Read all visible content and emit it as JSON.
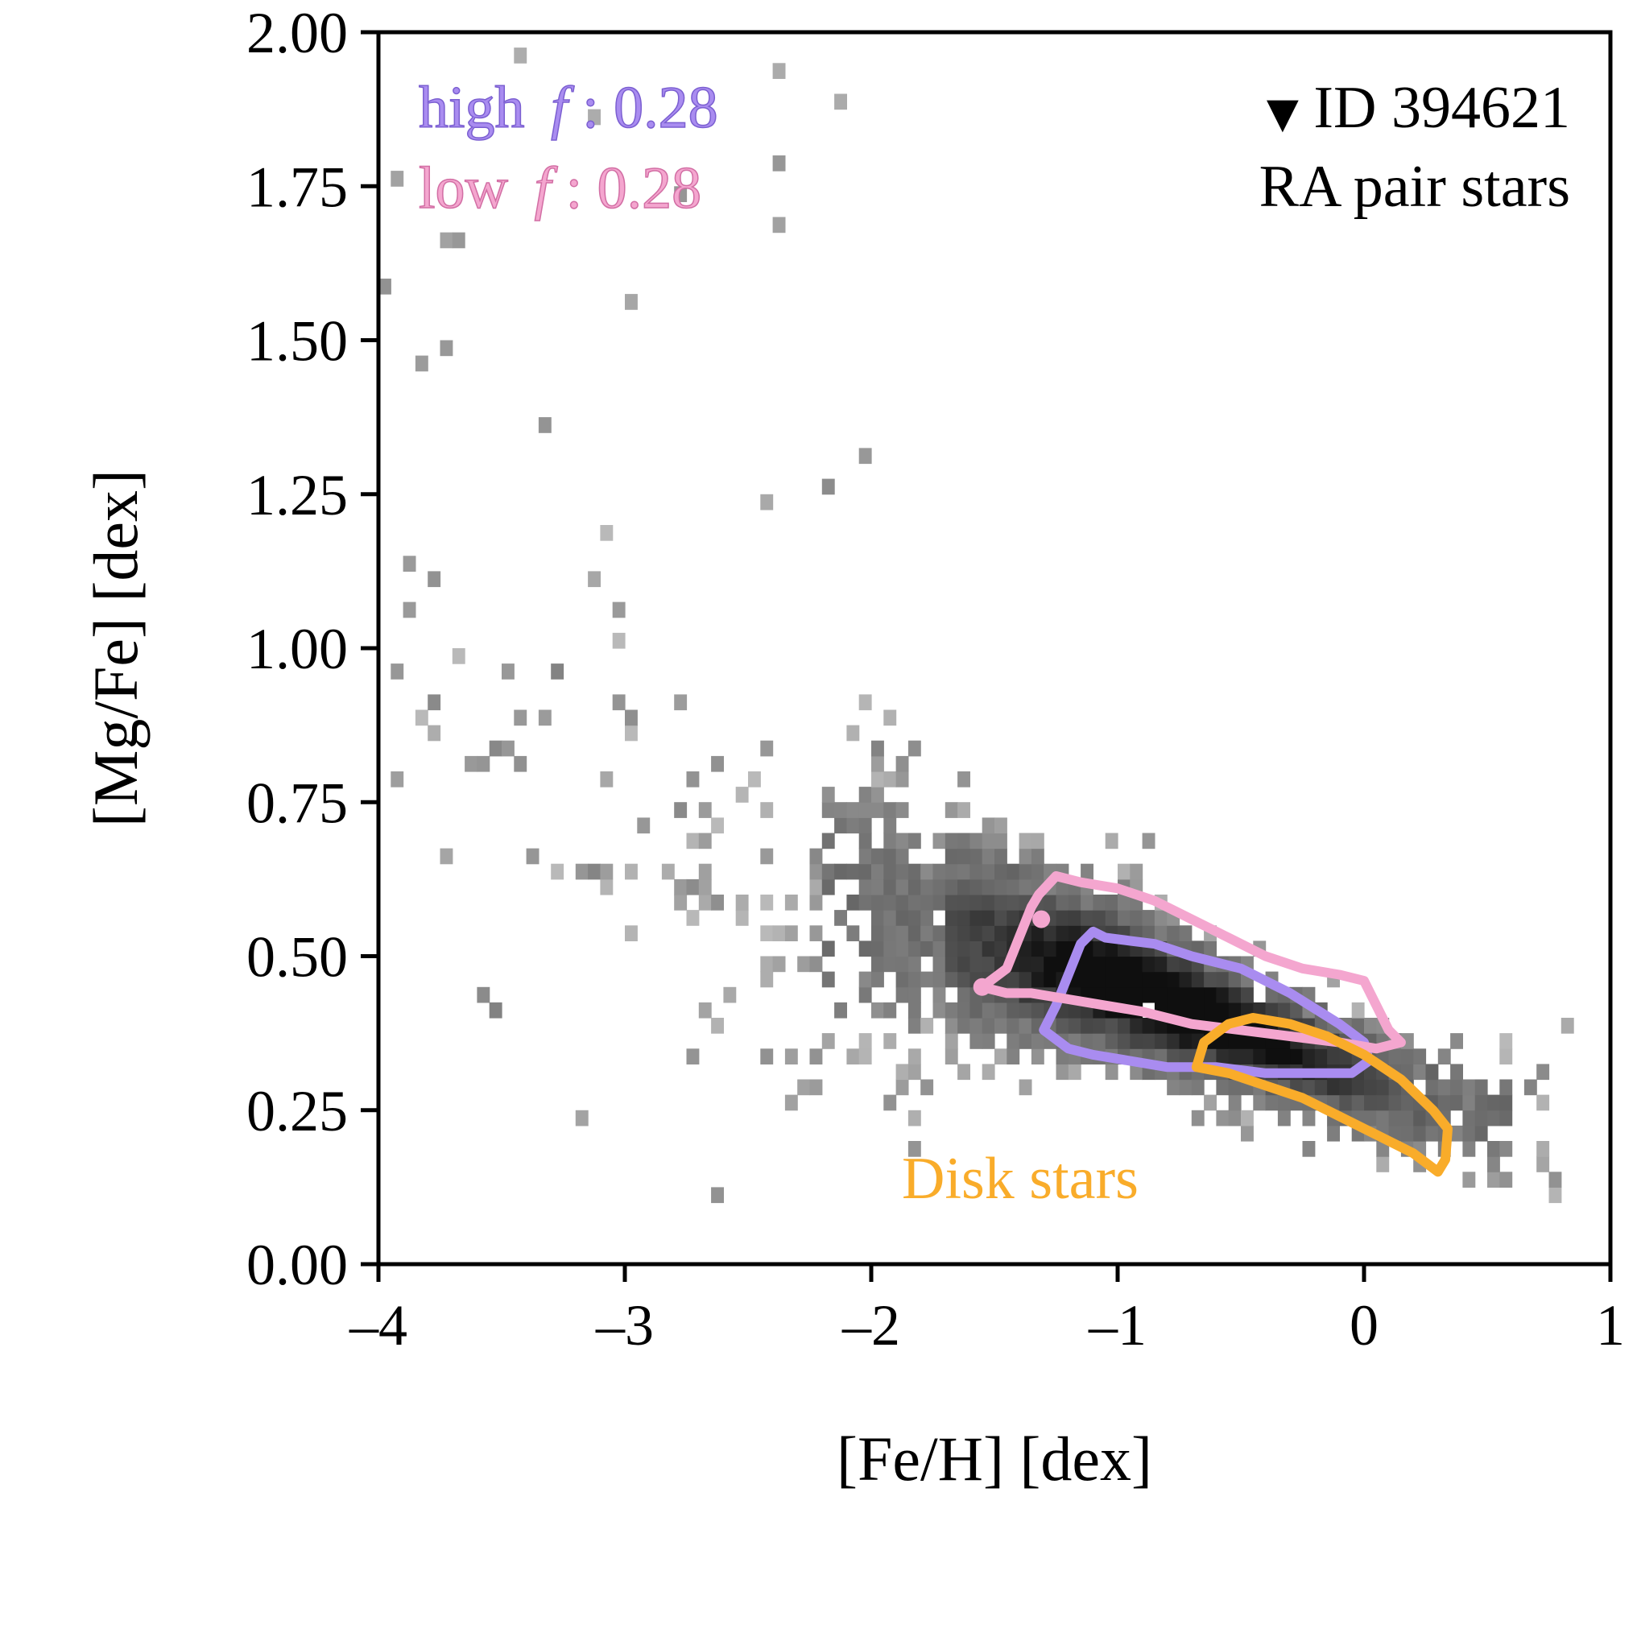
{
  "chart_data": {
    "type": "heatmap",
    "title": "",
    "xlabel": "[Fe/H] [dex]",
    "ylabel": "[Mg/Fe] [dex]",
    "xlim": [
      -4,
      1
    ],
    "ylim": [
      0,
      2.0
    ],
    "grid": false,
    "x_ticks": [
      -4,
      -3,
      -2,
      -1,
      0,
      1
    ],
    "x_tick_labels": [
      "–4",
      "–3",
      "–2",
      "–1",
      "0",
      "1"
    ],
    "y_ticks": [
      0,
      0.25,
      0.5,
      0.75,
      1.0,
      1.25,
      1.5,
      1.75,
      2.0
    ],
    "y_tick_labels": [
      "0.00",
      "0.25",
      "0.50",
      "0.75",
      "1.00",
      "1.25",
      "1.50",
      "1.75",
      "2.00"
    ],
    "annotations": {
      "high_label": "high",
      "high_f_symbol": "f",
      "high_value": ": 0.28",
      "low_label": "low",
      "low_f_symbol": "f",
      "low_value": ": 0.28",
      "id_marker": "▼",
      "id_text": "ID 394621",
      "pair_text": "RA pair stars",
      "disk_text": "Disk stars"
    },
    "colors": {
      "high": "#a98cf0",
      "low": "#f4a6cf",
      "disk": "#f9ac2a",
      "background": "#ffffff",
      "axis": "#000000"
    },
    "histogram": {
      "description": "2D density of RA pair stars in [Fe/H]-[Mg/Fe] plane (grayscale, darker = denser)",
      "peak": [
        -0.8,
        0.44
      ],
      "ridge": [
        [
          -2.6,
          0.62
        ],
        [
          -2.0,
          0.58
        ],
        [
          -1.5,
          0.52
        ],
        [
          -1.0,
          0.46
        ],
        [
          -0.5,
          0.38
        ],
        [
          0.0,
          0.3
        ],
        [
          0.4,
          0.24
        ]
      ]
    },
    "series": [
      {
        "name": "high f contour",
        "color": "#a98cf0",
        "x": [
          -1.3,
          -1.25,
          -1.2,
          -1.15,
          -1.1,
          -1.05,
          -0.95,
          -0.85,
          -0.7,
          -0.5,
          -0.3,
          -0.1,
          0.0,
          0.02,
          -0.05,
          -0.2,
          -0.4,
          -0.6,
          -0.8,
          -0.95,
          -1.1,
          -1.2,
          -1.3
        ],
        "y": [
          0.38,
          0.42,
          0.47,
          0.52,
          0.54,
          0.53,
          0.525,
          0.52,
          0.5,
          0.48,
          0.44,
          0.39,
          0.36,
          0.33,
          0.31,
          0.31,
          0.31,
          0.32,
          0.32,
          0.33,
          0.34,
          0.35,
          0.38
        ]
      },
      {
        "name": "low f contour",
        "color": "#f4a6cf",
        "x": [
          -1.55,
          -1.45,
          -1.4,
          -1.35,
          -1.32,
          -1.25,
          -1.15,
          -1.0,
          -0.85,
          -0.7,
          -0.55,
          -0.4,
          -0.25,
          -0.1,
          0.0,
          0.05,
          0.1,
          0.15,
          0.05,
          -0.1,
          -0.3,
          -0.5,
          -0.7,
          -0.9,
          -1.05,
          -1.2,
          -1.35,
          -1.45,
          -1.55
        ],
        "y": [
          0.45,
          0.48,
          0.53,
          0.58,
          0.6,
          0.63,
          0.62,
          0.61,
          0.59,
          0.56,
          0.53,
          0.5,
          0.48,
          0.47,
          0.46,
          0.42,
          0.38,
          0.36,
          0.35,
          0.36,
          0.37,
          0.38,
          0.39,
          0.41,
          0.42,
          0.43,
          0.44,
          0.44,
          0.45
        ]
      },
      {
        "name": "Disk stars contour",
        "color": "#f9ac2a",
        "x": [
          -0.68,
          -0.65,
          -0.55,
          -0.45,
          -0.3,
          -0.15,
          0.0,
          0.15,
          0.28,
          0.34,
          0.33,
          0.3,
          0.2,
          0.05,
          -0.1,
          -0.25,
          -0.4,
          -0.55,
          -0.68
        ],
        "y": [
          0.32,
          0.36,
          0.39,
          0.4,
          0.39,
          0.37,
          0.34,
          0.3,
          0.25,
          0.22,
          0.17,
          0.15,
          0.18,
          0.21,
          0.24,
          0.27,
          0.29,
          0.31,
          0.32
        ]
      }
    ]
  }
}
